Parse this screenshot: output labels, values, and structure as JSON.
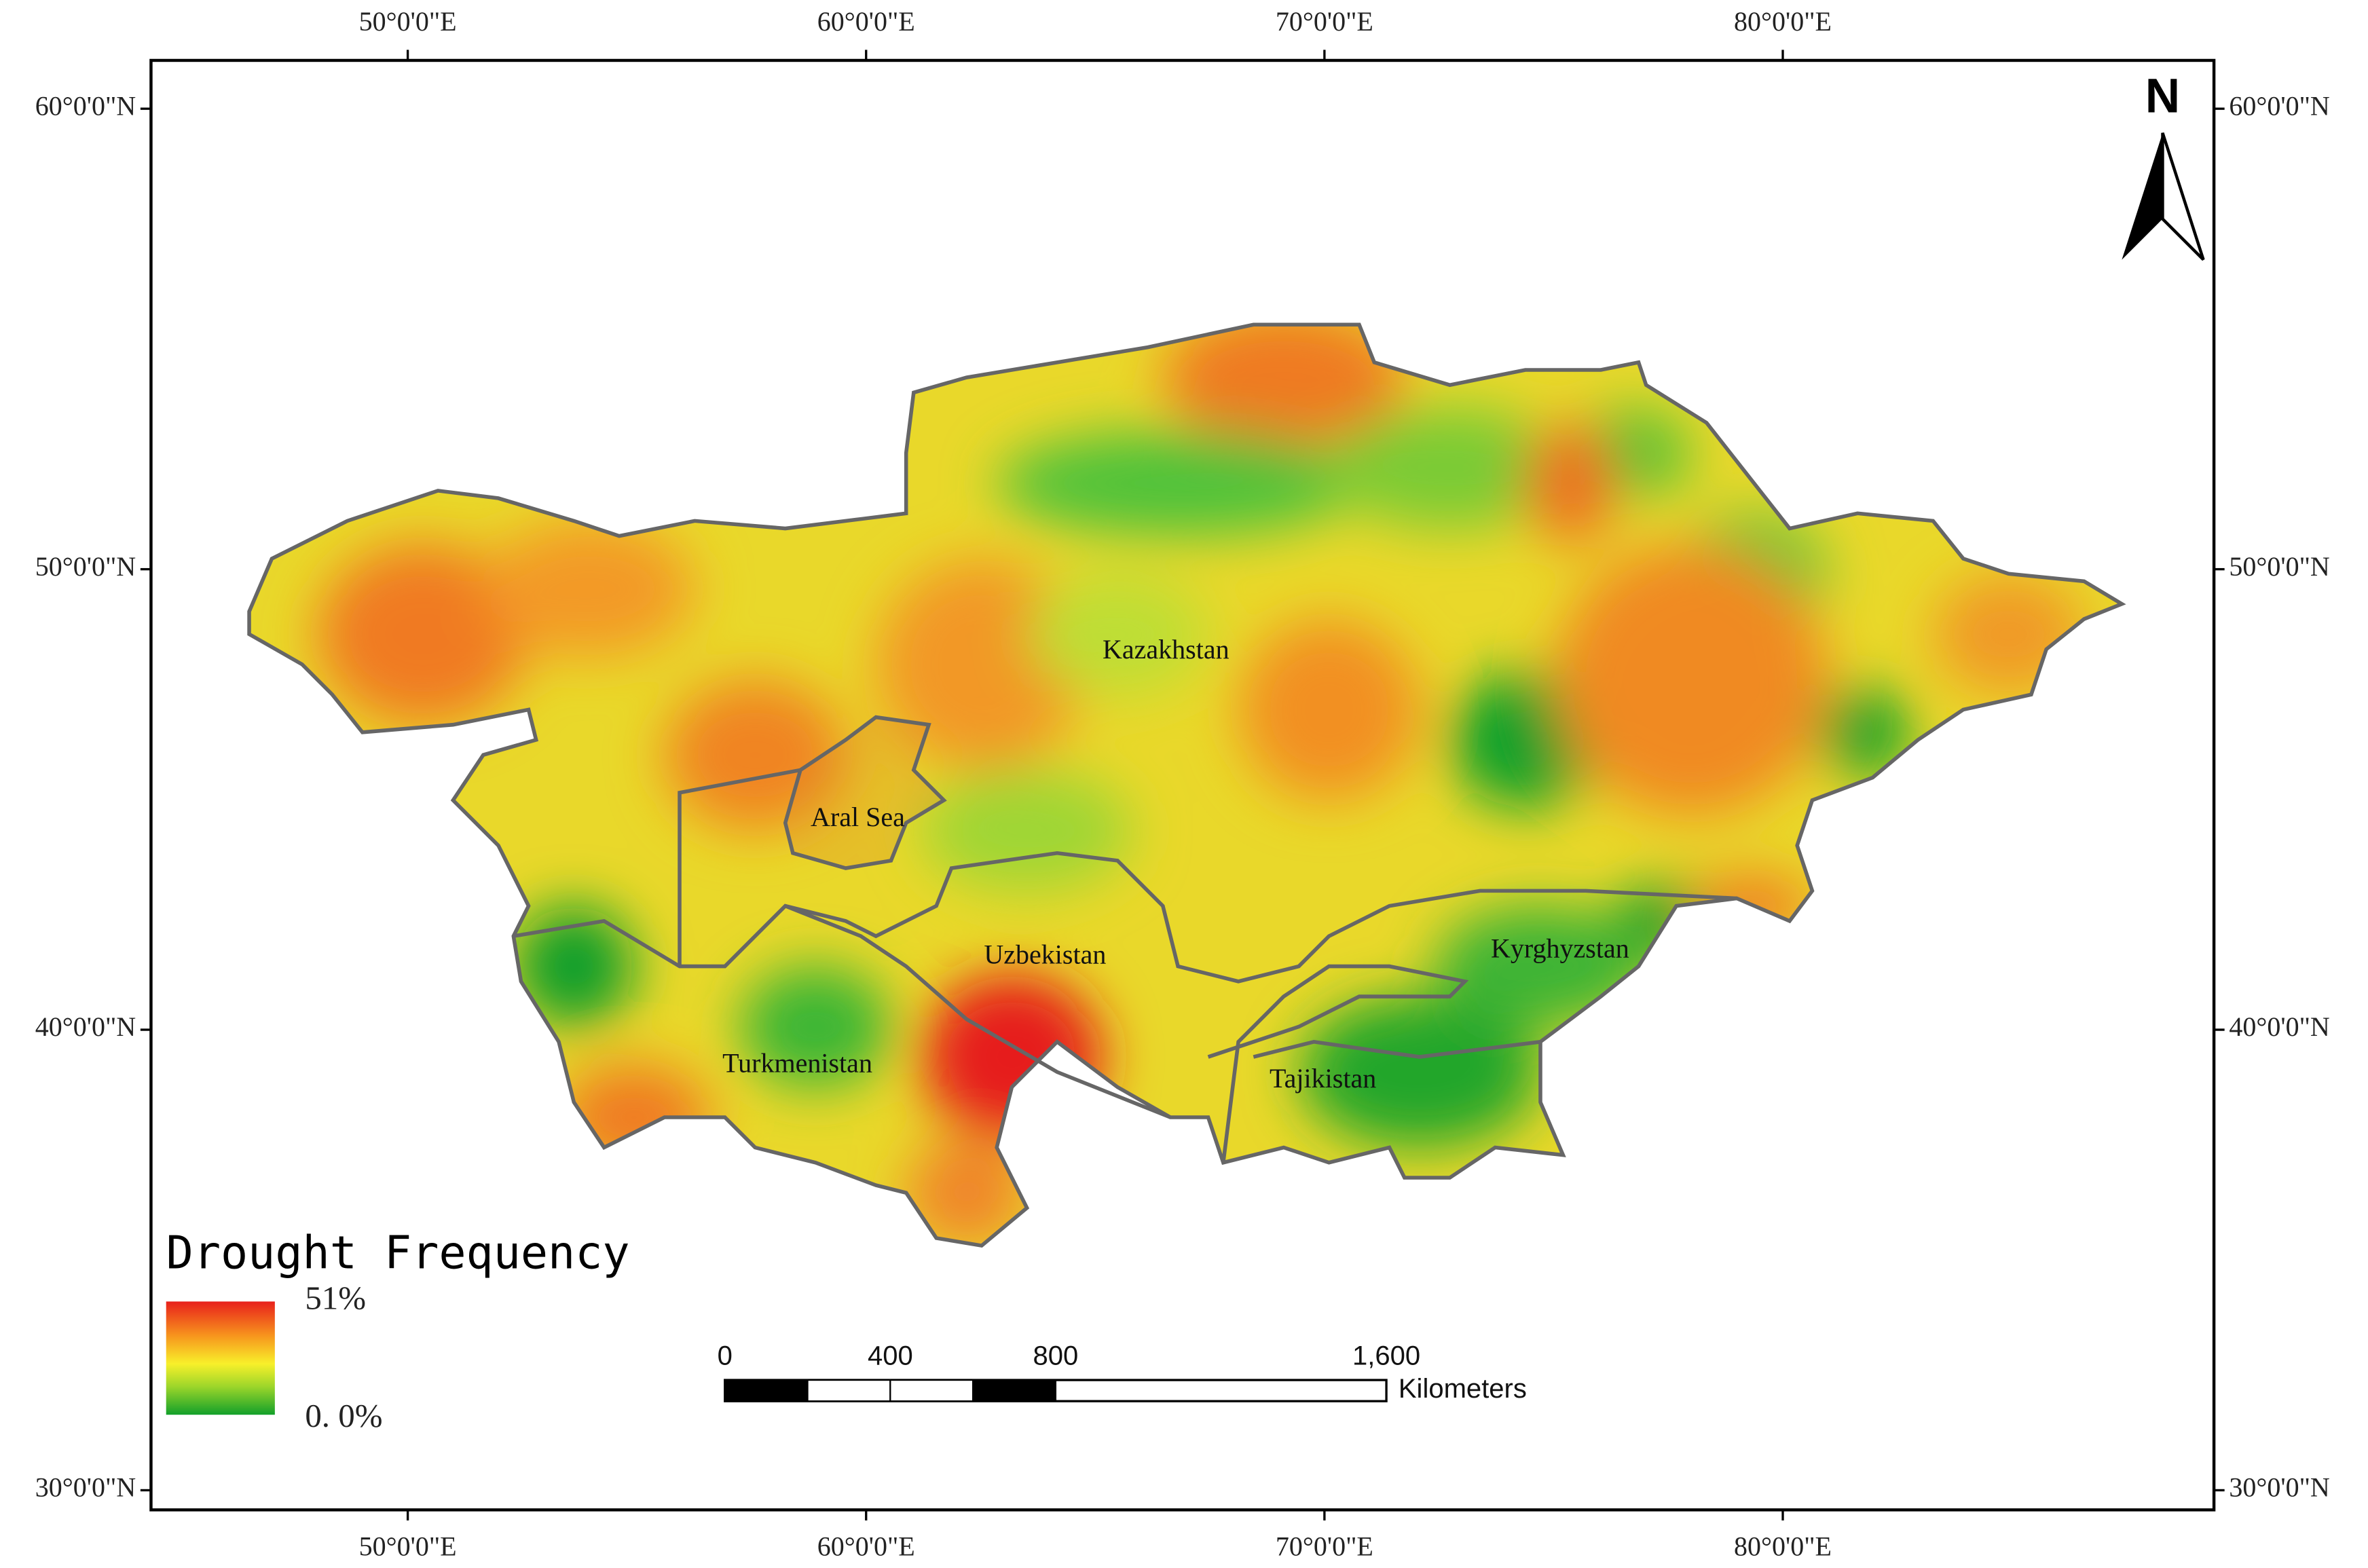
{
  "map": {
    "longitude_ticks": [
      {
        "value": 50,
        "label": "50°0'0\"E"
      },
      {
        "value": 60,
        "label": "60°0'0\"E"
      },
      {
        "value": 70,
        "label": "70°0'0\"E"
      },
      {
        "value": 80,
        "label": "80°0'0\"E"
      }
    ],
    "latitude_ticks": [
      {
        "value": 60,
        "label": "60°0'0\"N"
      },
      {
        "value": 50,
        "label": "50°0'0\"N"
      },
      {
        "value": 40,
        "label": "40°0'0\"N"
      },
      {
        "value": 30,
        "label": "30°0'0\"N"
      }
    ],
    "regions": [
      "Kazakhstan",
      "Aral Sea",
      "Uzbekistan",
      "Kyrghyzstan",
      "Turkmenistan",
      "Tajikistan"
    ],
    "legend": {
      "title": "Drought Frequency",
      "max_label": "51%",
      "min_label": "0. 0%"
    },
    "scale_bar": {
      "ticks": [
        {
          "value": 0,
          "label": "0"
        },
        {
          "value": 400,
          "label": "400"
        },
        {
          "value": 800,
          "label": "800"
        },
        {
          "value": 1600,
          "label": "1,600"
        }
      ],
      "unit": "Kilometers"
    },
    "north": "N"
  }
}
